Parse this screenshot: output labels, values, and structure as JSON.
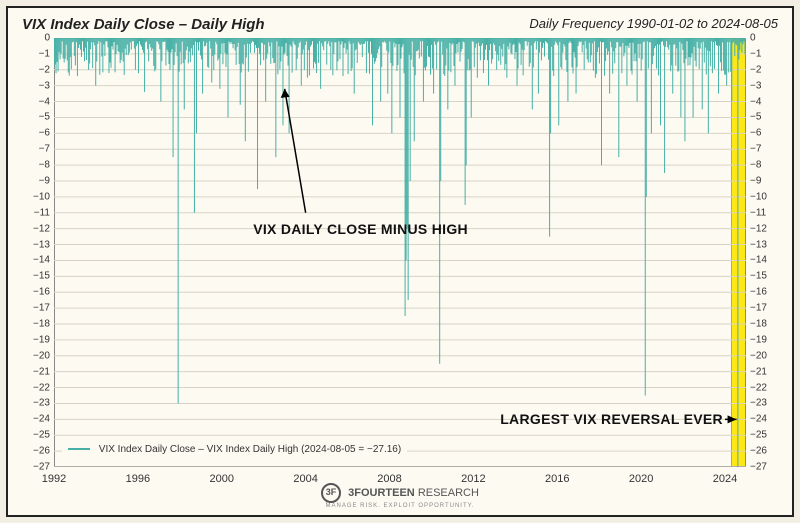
{
  "title": "VIX Index Daily Close – Daily High",
  "subtitle": "Daily Frequency 1990-01-02 to 2024-08-05",
  "title_fontsize": 15,
  "subtitle_fontsize": 13,
  "legend_text": "VIX Index Daily Close – VIX Index Daily High (2024-08-05 = −27.16)",
  "annotation_center": "VIX DAILY CLOSE MINUS HIGH",
  "annotation_right": "LARGEST VIX REVERSAL EVER",
  "footer_brand": "3FOURTEEN",
  "footer_brand_sub": "RESEARCH",
  "footer_tagline": "MANAGE RISK. EXPLOIT OPPORTUNITY.",
  "chart": {
    "type": "bar-down",
    "ylim": [
      -27,
      0
    ],
    "ytick_step": 1,
    "xlim": [
      1992,
      2025
    ],
    "xticks": [
      1992,
      1996,
      2000,
      2004,
      2008,
      2012,
      2016,
      2020,
      2024
    ],
    "background_color": "#fdfaf2",
    "grid_color": "#d8d3c4",
    "series_color": "#46b0a6",
    "highlight_color": "#ffe600",
    "highlight_x": [
      2024.3,
      2024.9
    ],
    "annotation_fontsize": 14,
    "n_points": 680,
    "spikes": [
      {
        "x": 1992.2,
        "v": -2.1
      },
      {
        "x": 1992.8,
        "v": -1.2
      },
      {
        "x": 1993.1,
        "v": -2.4
      },
      {
        "x": 1993.7,
        "v": -1.6
      },
      {
        "x": 1994.0,
        "v": -3.0
      },
      {
        "x": 1994.6,
        "v": -2.2
      },
      {
        "x": 1995.2,
        "v": -1.4
      },
      {
        "x": 1995.9,
        "v": -2.0
      },
      {
        "x": 1996.3,
        "v": -3.4
      },
      {
        "x": 1996.8,
        "v": -2.1
      },
      {
        "x": 1997.1,
        "v": -4.0
      },
      {
        "x": 1997.7,
        "v": -7.5
      },
      {
        "x": 1997.9,
        "v": -23.0
      },
      {
        "x": 1998.2,
        "v": -4.5
      },
      {
        "x": 1998.7,
        "v": -11.0
      },
      {
        "x": 1998.8,
        "v": -6.0
      },
      {
        "x": 1999.1,
        "v": -3.5
      },
      {
        "x": 1999.5,
        "v": -2.8
      },
      {
        "x": 1999.9,
        "v": -3.2
      },
      {
        "x": 2000.3,
        "v": -5.0
      },
      {
        "x": 2000.9,
        "v": -4.2
      },
      {
        "x": 2001.1,
        "v": -6.5
      },
      {
        "x": 2001.7,
        "v": -8.0
      },
      {
        "x": 2001.72,
        "v": -9.5
      },
      {
        "x": 2002.1,
        "v": -4.0
      },
      {
        "x": 2002.6,
        "v": -7.5
      },
      {
        "x": 2002.9,
        "v": -5.5
      },
      {
        "x": 2003.2,
        "v": -6.0
      },
      {
        "x": 2003.8,
        "v": -3.0
      },
      {
        "x": 2004.1,
        "v": -2.5
      },
      {
        "x": 2004.7,
        "v": -3.2
      },
      {
        "x": 2005.2,
        "v": -2.0
      },
      {
        "x": 2005.8,
        "v": -2.4
      },
      {
        "x": 2006.3,
        "v": -3.5
      },
      {
        "x": 2006.9,
        "v": -2.2
      },
      {
        "x": 2007.2,
        "v": -5.5
      },
      {
        "x": 2007.6,
        "v": -4.0
      },
      {
        "x": 2007.9,
        "v": -3.5
      },
      {
        "x": 2008.1,
        "v": -6.0
      },
      {
        "x": 2008.5,
        "v": -5.0
      },
      {
        "x": 2008.75,
        "v": -17.5
      },
      {
        "x": 2008.8,
        "v": -14.0
      },
      {
        "x": 2008.85,
        "v": -12.0
      },
      {
        "x": 2008.9,
        "v": -16.5
      },
      {
        "x": 2009.0,
        "v": -9.0
      },
      {
        "x": 2009.2,
        "v": -6.5
      },
      {
        "x": 2009.6,
        "v": -4.0
      },
      {
        "x": 2010.1,
        "v": -3.5
      },
      {
        "x": 2010.4,
        "v": -20.5
      },
      {
        "x": 2010.42,
        "v": -9.0
      },
      {
        "x": 2010.8,
        "v": -4.5
      },
      {
        "x": 2011.1,
        "v": -3.0
      },
      {
        "x": 2011.6,
        "v": -10.5
      },
      {
        "x": 2011.65,
        "v": -8.0
      },
      {
        "x": 2011.9,
        "v": -5.0
      },
      {
        "x": 2012.2,
        "v": -2.5
      },
      {
        "x": 2012.7,
        "v": -3.0
      },
      {
        "x": 2013.1,
        "v": -2.0
      },
      {
        "x": 2013.6,
        "v": -2.5
      },
      {
        "x": 2014.1,
        "v": -3.0
      },
      {
        "x": 2014.8,
        "v": -4.5
      },
      {
        "x": 2015.1,
        "v": -3.5
      },
      {
        "x": 2015.65,
        "v": -12.5
      },
      {
        "x": 2015.7,
        "v": -6.0
      },
      {
        "x": 2016.05,
        "v": -5.5
      },
      {
        "x": 2016.5,
        "v": -4.0
      },
      {
        "x": 2016.9,
        "v": -3.5
      },
      {
        "x": 2017.3,
        "v": -2.0
      },
      {
        "x": 2017.8,
        "v": -2.5
      },
      {
        "x": 2018.1,
        "v": -16.5
      },
      {
        "x": 2018.12,
        "v": -8.0
      },
      {
        "x": 2018.5,
        "v": -3.5
      },
      {
        "x": 2018.95,
        "v": -7.5
      },
      {
        "x": 2019.3,
        "v": -3.0
      },
      {
        "x": 2019.8,
        "v": -4.0
      },
      {
        "x": 2020.18,
        "v": -15.0
      },
      {
        "x": 2020.2,
        "v": -22.5
      },
      {
        "x": 2020.22,
        "v": -13.0
      },
      {
        "x": 2020.25,
        "v": -10.0
      },
      {
        "x": 2020.5,
        "v": -6.0
      },
      {
        "x": 2020.9,
        "v": -5.5
      },
      {
        "x": 2021.1,
        "v": -8.5
      },
      {
        "x": 2021.5,
        "v": -3.5
      },
      {
        "x": 2021.9,
        "v": -5.0
      },
      {
        "x": 2022.1,
        "v": -6.5
      },
      {
        "x": 2022.5,
        "v": -5.0
      },
      {
        "x": 2022.9,
        "v": -4.5
      },
      {
        "x": 2023.2,
        "v": -6.0
      },
      {
        "x": 2023.7,
        "v": -3.5
      },
      {
        "x": 2024.1,
        "v": -3.0
      },
      {
        "x": 2024.3,
        "v": -4.0
      },
      {
        "x": 2024.6,
        "v": -27.16
      }
    ]
  }
}
